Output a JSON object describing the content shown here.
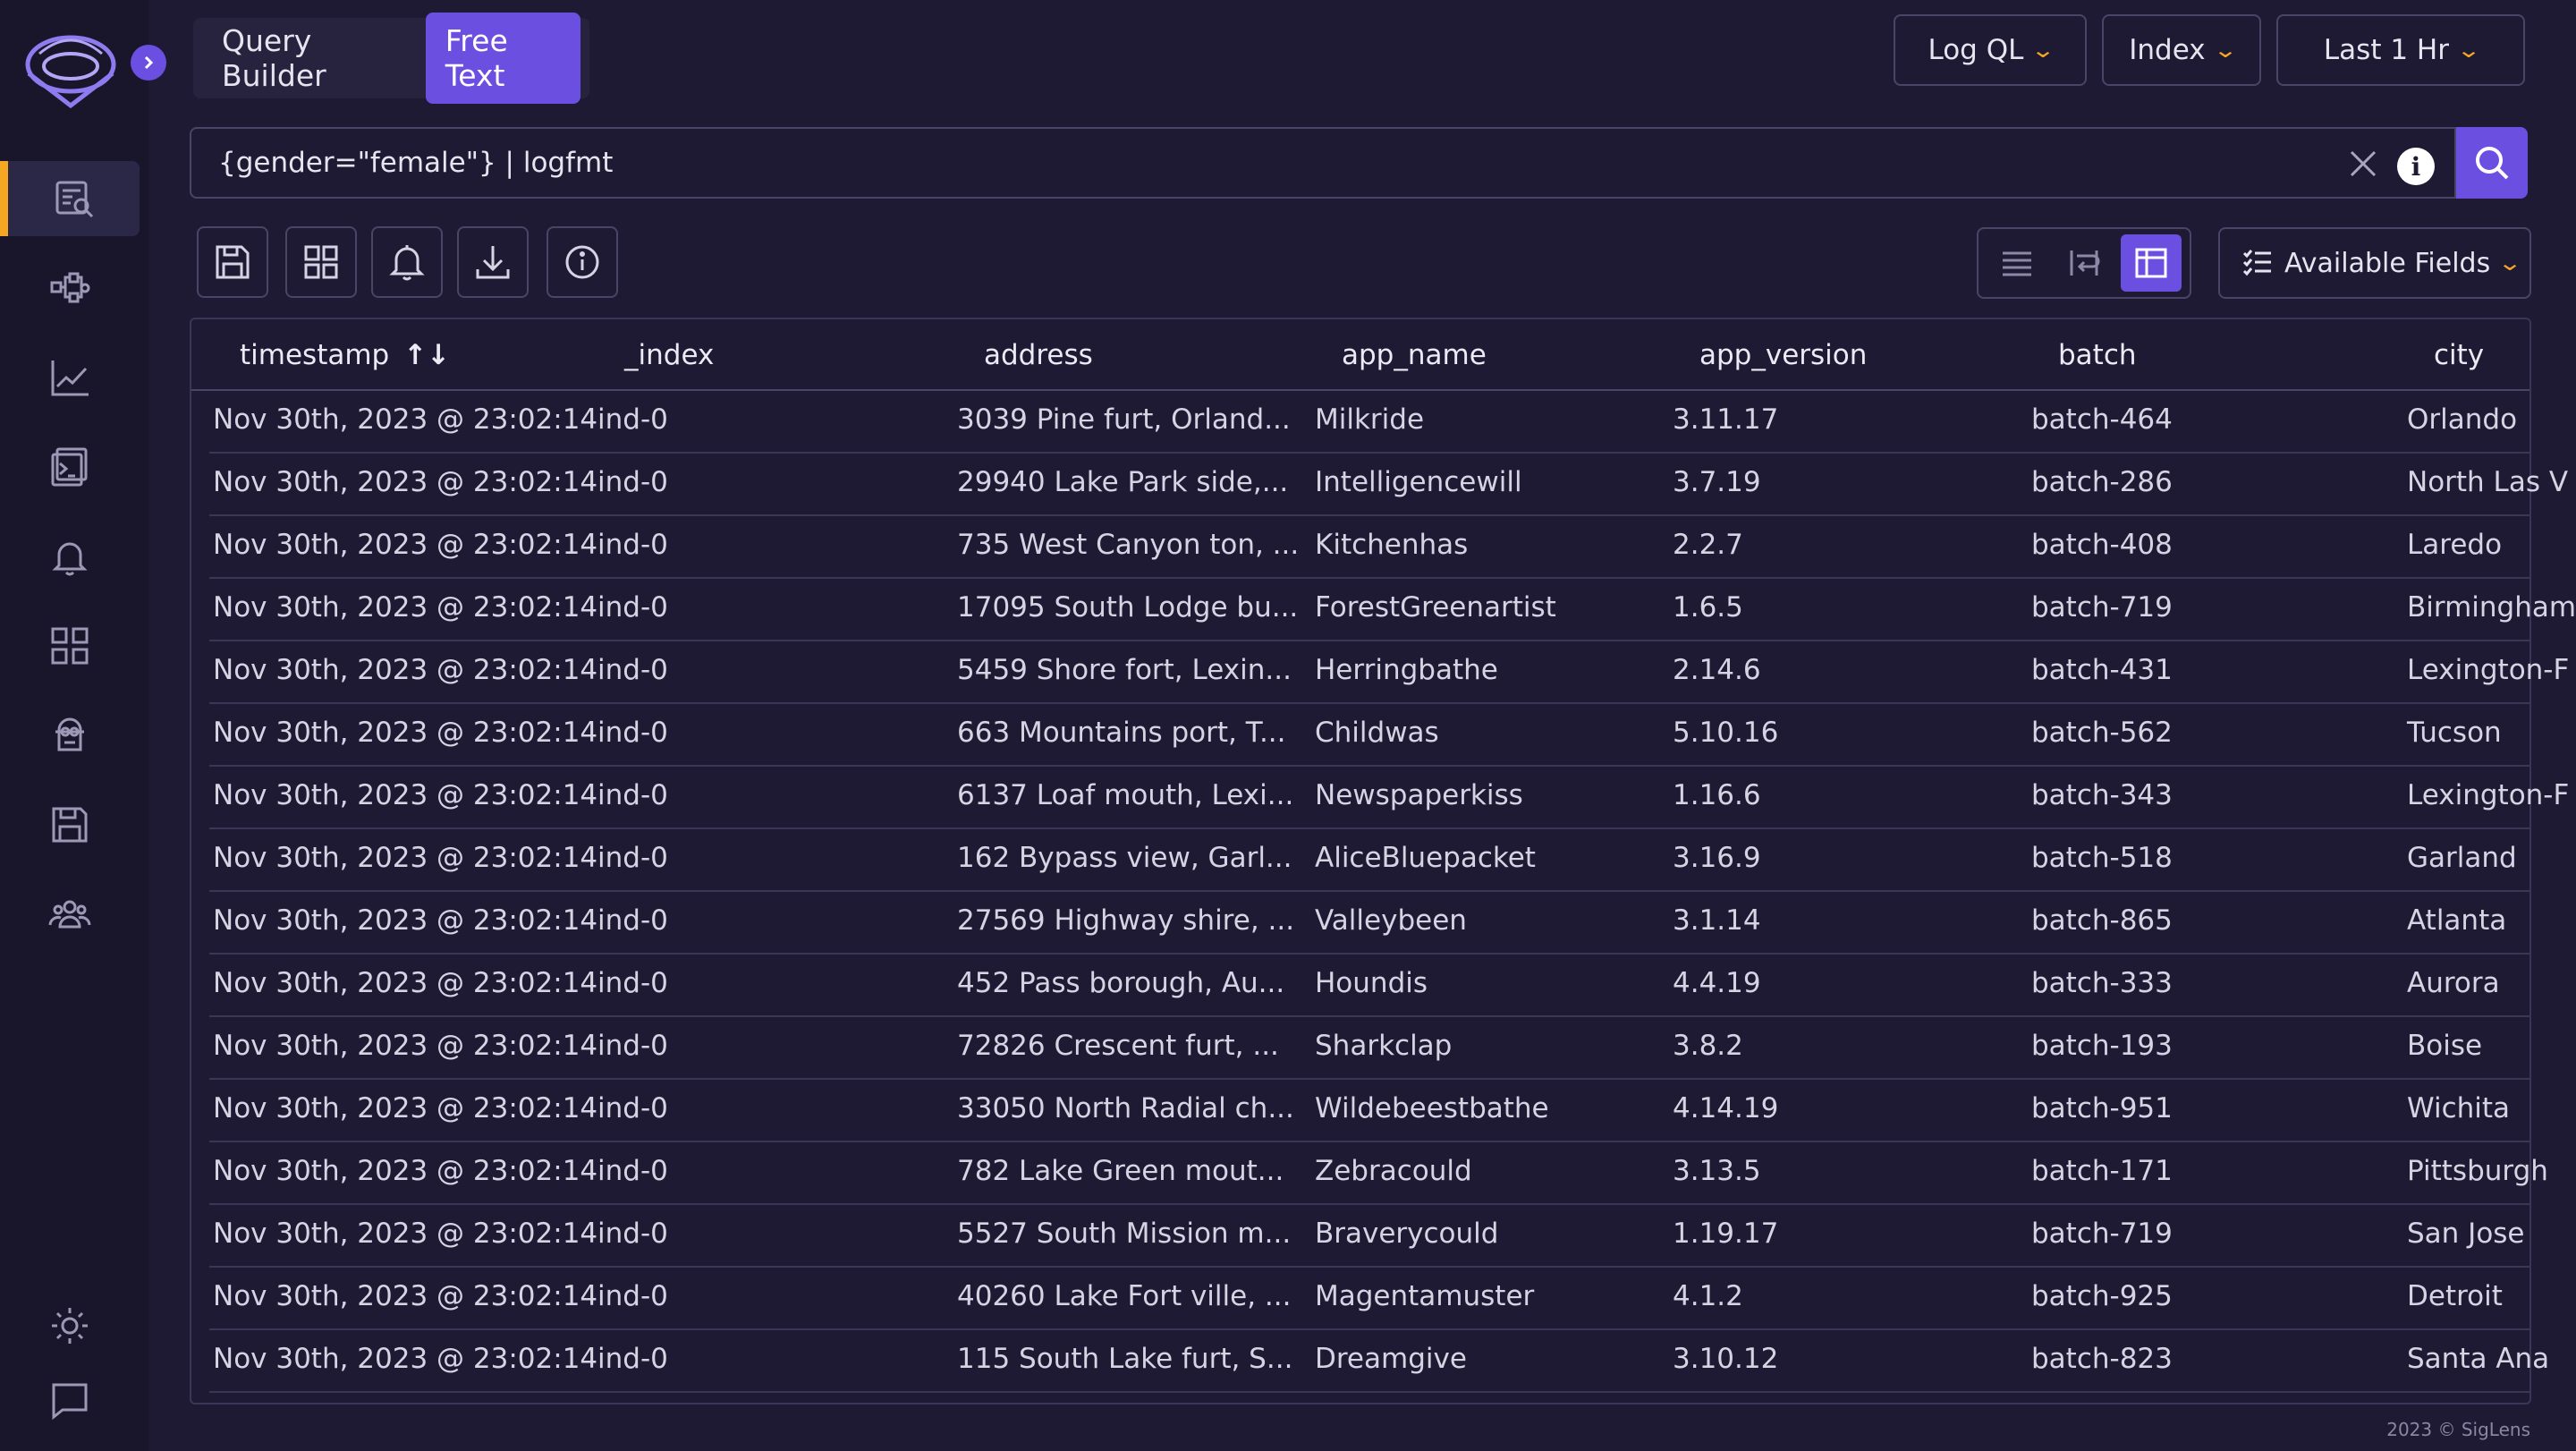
{
  "header": {
    "mode_tabs": [
      {
        "label": "Query Builder",
        "active": false
      },
      {
        "label": "Free Text",
        "active": true
      }
    ],
    "query_language": "Log QL",
    "index_selector": "Index",
    "time_range": "Last 1 Hr"
  },
  "search": {
    "query": "{gender=\"female\"} | logfmt"
  },
  "toolbar": {
    "available_fields_label": "Available Fields"
  },
  "sidebar": {
    "items": [
      {
        "icon": "search-logs-icon",
        "active": true
      },
      {
        "icon": "tracing-icon",
        "active": false
      },
      {
        "icon": "metrics-chart-icon",
        "active": false
      },
      {
        "icon": "live-tail-icon",
        "active": false
      },
      {
        "icon": "alert-bell-icon",
        "active": false
      },
      {
        "icon": "dashboards-grid-icon",
        "active": false
      },
      {
        "icon": "minion-icon",
        "active": false
      },
      {
        "icon": "saved-queries-icon",
        "active": false
      },
      {
        "icon": "team-icon",
        "active": false
      }
    ]
  },
  "table": {
    "columns": [
      "timestamp",
      "_index",
      "address",
      "app_name",
      "app_version",
      "batch",
      "city"
    ],
    "rows": [
      [
        "Nov 30th, 2023 @ 23:02:14",
        "ind-0",
        "3039 Pine furt, Orland...",
        "Milkride",
        "3.11.17",
        "batch-464",
        "Orlando"
      ],
      [
        "Nov 30th, 2023 @ 23:02:14",
        "ind-0",
        "29940 Lake Park side,...",
        "Intelligencewill",
        "3.7.19",
        "batch-286",
        "North Las V"
      ],
      [
        "Nov 30th, 2023 @ 23:02:14",
        "ind-0",
        "735 West Canyon ton, ...",
        "Kitchenhas",
        "2.2.7",
        "batch-408",
        "Laredo"
      ],
      [
        "Nov 30th, 2023 @ 23:02:14",
        "ind-0",
        "17095 South Lodge bu...",
        "ForestGreenartist",
        "1.6.5",
        "batch-719",
        "Birmingham"
      ],
      [
        "Nov 30th, 2023 @ 23:02:14",
        "ind-0",
        "5459 Shore fort, Lexin...",
        "Herringbathe",
        "2.14.6",
        "batch-431",
        "Lexington-F"
      ],
      [
        "Nov 30th, 2023 @ 23:02:14",
        "ind-0",
        "663 Mountains port, T...",
        "Childwas",
        "5.10.16",
        "batch-562",
        "Tucson"
      ],
      [
        "Nov 30th, 2023 @ 23:02:14",
        "ind-0",
        "6137 Loaf mouth, Lexi...",
        "Newspaperkiss",
        "1.16.6",
        "batch-343",
        "Lexington-F"
      ],
      [
        "Nov 30th, 2023 @ 23:02:14",
        "ind-0",
        "162 Bypass view, Garl...",
        "AliceBluepacket",
        "3.16.9",
        "batch-518",
        "Garland"
      ],
      [
        "Nov 30th, 2023 @ 23:02:14",
        "ind-0",
        "27569 Highway shire, ...",
        "Valleybeen",
        "3.1.14",
        "batch-865",
        "Atlanta"
      ],
      [
        "Nov 30th, 2023 @ 23:02:14",
        "ind-0",
        "452 Pass borough, Au...",
        "Houndis",
        "4.4.19",
        "batch-333",
        "Aurora"
      ],
      [
        "Nov 30th, 2023 @ 23:02:14",
        "ind-0",
        "72826 Crescent furt, ...",
        "Sharkclap",
        "3.8.2",
        "batch-193",
        "Boise"
      ],
      [
        "Nov 30th, 2023 @ 23:02:14",
        "ind-0",
        "33050 North Radial ch...",
        "Wildebeestbathe",
        "4.14.19",
        "batch-951",
        "Wichita"
      ],
      [
        "Nov 30th, 2023 @ 23:02:14",
        "ind-0",
        "782 Lake Green mout...",
        "Zebracould",
        "3.13.5",
        "batch-171",
        "Pittsburgh"
      ],
      [
        "Nov 30th, 2023 @ 23:02:14",
        "ind-0",
        "5527 South Mission m...",
        "Braverycould",
        "1.19.17",
        "batch-719",
        "San Jose"
      ],
      [
        "Nov 30th, 2023 @ 23:02:14",
        "ind-0",
        "40260 Lake Fort ville, ...",
        "Magentamuster",
        "4.1.2",
        "batch-925",
        "Detroit"
      ],
      [
        "Nov 30th, 2023 @ 23:02:14",
        "ind-0",
        "115 South Lake furt, S...",
        "Dreamgive",
        "3.10.12",
        "batch-823",
        "Santa Ana"
      ]
    ]
  },
  "footer": {
    "copyright": "2023 © SigLens"
  },
  "colors": {
    "accent": "#6b4fe0",
    "highlight": "#f5a623",
    "background": "#1e1a33",
    "sidebar": "#19162c"
  }
}
